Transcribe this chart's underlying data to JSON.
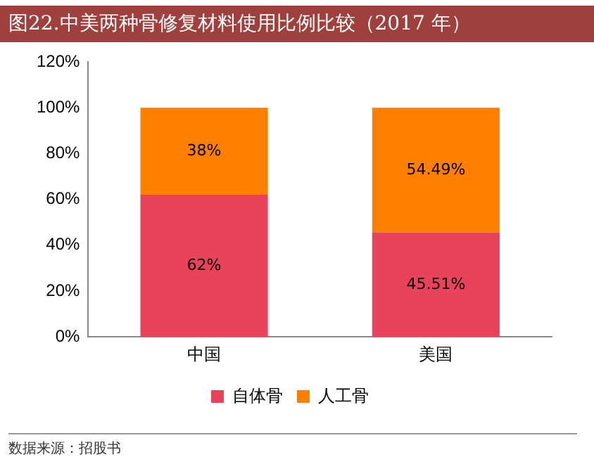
{
  "chart_data": {
    "type": "bar",
    "title": "图22.中美两种骨修复材料使用比例比较（2017 年）",
    "categories": [
      "中国",
      "美国"
    ],
    "stacked": true,
    "series": [
      {
        "name": "自体骨",
        "color": "#e8435a",
        "values": [
          62,
          45.51
        ],
        "value_labels": [
          "62%",
          "45.51%"
        ]
      },
      {
        "name": "人工骨",
        "color": "#ff8000",
        "values": [
          38,
          54.49
        ],
        "value_labels": [
          "38%",
          "54.49%"
        ]
      }
    ],
    "ylim": [
      0,
      120
    ],
    "yticks": [
      {
        "value": 0,
        "label": "0%"
      },
      {
        "value": 20,
        "label": "20%"
      },
      {
        "value": 40,
        "label": "40%"
      },
      {
        "value": 60,
        "label": "60%"
      },
      {
        "value": 80,
        "label": "80%"
      },
      {
        "value": 100,
        "label": "100%"
      },
      {
        "value": 120,
        "label": "120%"
      }
    ],
    "grid": false,
    "legend": "bottom",
    "annotations": [
      "数据来源：招股书"
    ]
  }
}
